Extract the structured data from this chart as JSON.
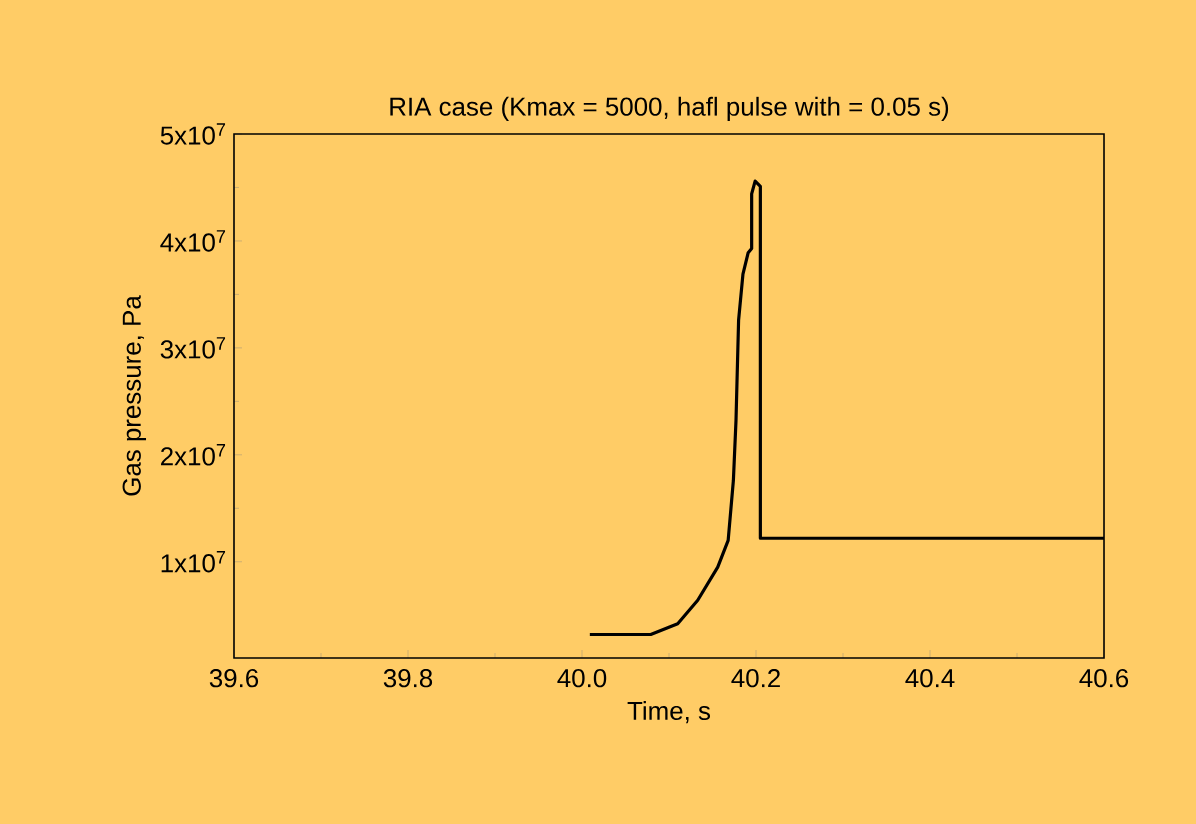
{
  "chart_data": {
    "type": "line",
    "title": "RIA case  (Kmax = 5000, hafl pulse with = 0.05 s)",
    "xlabel": "Time, s",
    "ylabel": "Gas pressure, Pa",
    "xlim": [
      39.6,
      40.6
    ],
    "ylim": [
      1000000,
      50000000
    ],
    "xticks": [
      39.6,
      39.8,
      {
        "value": 40.0,
        "label": "40.0"
      },
      40.2,
      40.4,
      40.6
    ],
    "yticks": [
      {
        "value": 10000000,
        "label": "1x10$^{7}$"
      },
      {
        "value": 20000000,
        "label": "2x10$^{7}$"
      },
      {
        "value": 30000000,
        "label": "3x10$^{7}$"
      },
      {
        "value": 40000000,
        "label": "4x10$^{7}$"
      },
      {
        "value": 50000000,
        "label": "5x10$^{7}$"
      }
    ],
    "series": [
      {
        "color": "#000000",
        "x": [
          40.009,
          40.079,
          40.11,
          40.133,
          40.156,
          40.168,
          40.174,
          40.177,
          40.18,
          40.185,
          40.191,
          40.195,
          40.195,
          40.199,
          40.205,
          40.205,
          40.6
        ],
        "values": [
          3200000,
          3200000,
          4200000,
          6400000,
          9500000,
          12000000,
          17600000,
          23200000,
          32600000,
          36900000,
          38900000,
          39300000,
          44400000,
          45600000,
          45100000,
          12200000,
          12200000
        ]
      }
    ]
  }
}
